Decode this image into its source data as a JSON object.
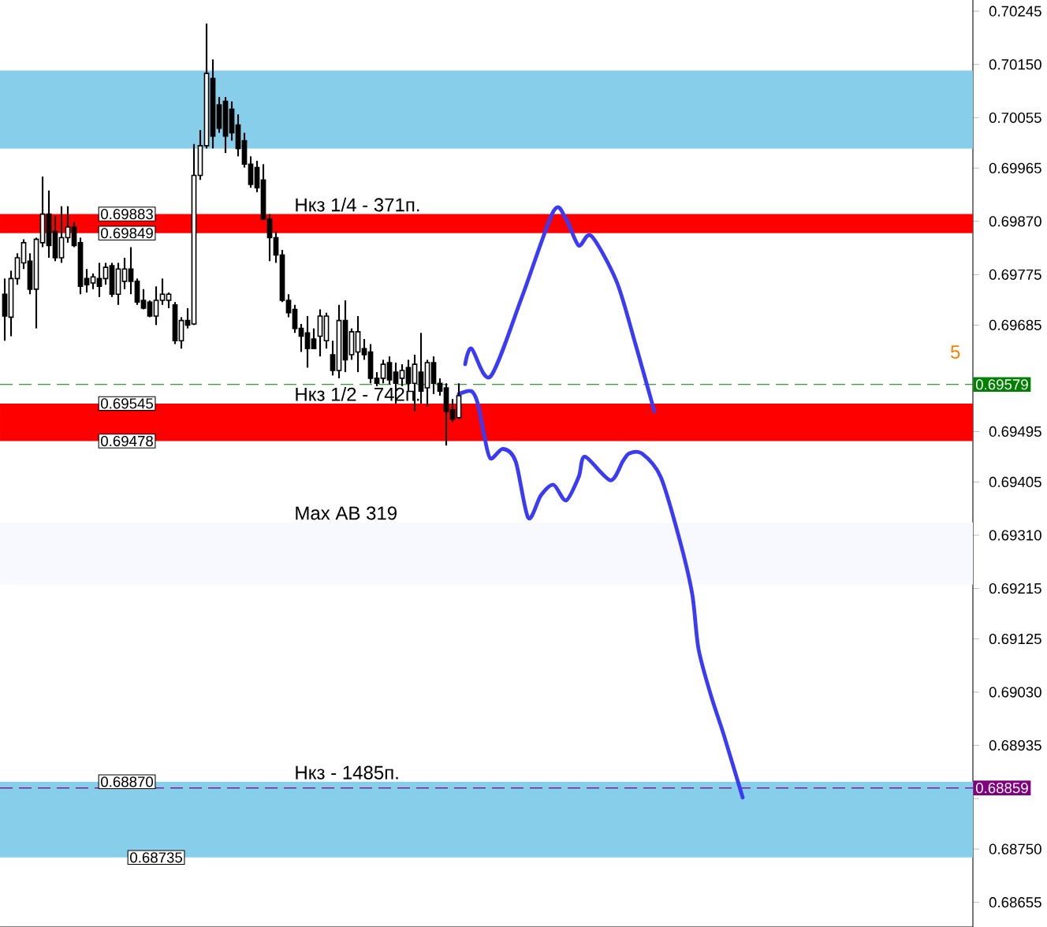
{
  "chart_data": {
    "type": "candlestick",
    "categories": [
      null,
      null,
      null,
      null,
      null,
      null,
      null,
      null,
      null,
      null,
      null,
      null,
      null,
      null,
      null,
      null,
      null,
      null,
      null,
      null,
      null,
      null,
      null,
      null,
      null,
      null,
      null,
      null,
      null,
      null,
      null,
      null,
      null,
      null,
      null,
      null,
      null,
      null,
      null,
      null,
      null,
      null,
      null,
      null,
      null,
      null,
      null,
      null,
      null,
      null,
      null,
      null,
      null,
      null,
      null,
      null,
      null,
      null,
      null,
      null,
      null,
      null,
      null,
      null,
      null,
      null,
      null,
      null,
      null,
      null,
      null,
      null,
      null,
      null,
      null,
      null,
      null,
      null,
      null,
      null,
      null,
      null,
      null,
      null,
      null,
      null,
      null,
      null,
      null,
      null,
      null,
      null,
      null,
      null,
      null,
      null,
      null,
      null,
      null,
      null,
      null,
      null,
      null,
      null,
      null,
      null,
      null,
      null,
      null,
      null,
      null,
      null,
      null,
      null,
      null,
      null,
      null,
      null,
      null,
      null,
      null,
      null,
      null,
      null,
      null,
      null,
      null,
      null,
      null,
      null,
      null,
      null,
      null,
      null,
      null,
      null,
      null,
      null,
      null,
      null,
      null,
      null,
      null,
      null,
      null,
      null,
      null,
      null,
      null,
      null,
      null,
      null,
      null,
      null
    ],
    "ohlc": [
      [
        0.6974,
        0.69768,
        0.69657,
        0.69701
      ],
      [
        0.69699,
        0.69782,
        0.69665,
        0.69768
      ],
      [
        0.69768,
        0.69813,
        0.69757,
        0.69805
      ],
      [
        0.69796,
        0.69838,
        0.69785,
        0.69832
      ],
      [
        0.69799,
        0.69813,
        0.6974,
        0.69749
      ],
      [
        0.69749,
        0.69841,
        0.69679,
        0.69838
      ],
      [
        0.69832,
        0.6995,
        0.69824,
        0.69883
      ],
      [
        0.69883,
        0.69925,
        0.69805,
        0.69827
      ],
      [
        0.69852,
        0.6988,
        0.69799,
        0.69805
      ],
      [
        0.69805,
        0.69897,
        0.69796,
        0.69841
      ],
      [
        0.69841,
        0.69897,
        0.69832,
        0.6986
      ],
      [
        0.6986,
        0.69869,
        0.69824,
        0.69827
      ],
      [
        0.69832,
        0.69841,
        0.6974,
        0.69754
      ],
      [
        0.69768,
        0.69785,
        0.69743,
        0.69757
      ],
      [
        0.6976,
        0.69777,
        0.69749,
        0.69771
      ],
      [
        0.69768,
        0.69796,
        0.69735,
        0.69754
      ],
      [
        0.69768,
        0.69796,
        0.69757,
        0.69788
      ],
      [
        0.69791,
        0.69796,
        0.69735,
        0.6974
      ],
      [
        0.6974,
        0.69796,
        0.69721,
        0.69785
      ],
      [
        0.69763,
        0.69805,
        0.69749,
        0.69785
      ],
      [
        0.69785,
        0.69824,
        0.6974,
        0.69763
      ],
      [
        0.69763,
        0.69768,
        0.69721,
        0.69726
      ],
      [
        0.69729,
        0.69749,
        0.69713,
        0.69715
      ],
      [
        0.69726,
        0.69729,
        0.69699,
        0.69701
      ],
      [
        0.69701,
        0.69754,
        0.69685,
        0.69729
      ],
      [
        0.69729,
        0.69768,
        0.69721,
        0.6974
      ],
      [
        0.69729,
        0.69743,
        0.69715,
        0.6974
      ],
      [
        0.69721,
        0.69726,
        0.69651,
        0.69657
      ],
      [
        0.69657,
        0.69699,
        0.69643,
        0.69693
      ],
      [
        0.69693,
        0.69715,
        0.69679,
        0.69685
      ],
      [
        0.69687,
        0.70008,
        0.69685,
        0.69952
      ],
      [
        0.69952,
        0.70033,
        0.69944,
        0.70005
      ],
      [
        0.70005,
        0.70223,
        0.7,
        0.70134
      ],
      [
        0.70125,
        0.70159,
        0.7,
        0.70022
      ],
      [
        0.70078,
        0.70092,
        0.70028,
        0.70036
      ],
      [
        0.70084,
        0.70092,
        0.69992,
        0.70022
      ],
      [
        0.7007,
        0.70084,
        0.70014,
        0.70028
      ],
      [
        0.70042,
        0.70061,
        0.69986,
        0.7
      ],
      [
        0.70014,
        0.70028,
        0.69966,
        0.69972
      ],
      [
        0.69972,
        0.69986,
        0.6993,
        0.69936
      ],
      [
        0.69966,
        0.69978,
        0.69922,
        0.6993
      ],
      [
        0.69944,
        0.69972,
        0.69872,
        0.69874
      ],
      [
        0.69874,
        0.69883,
        0.69799,
        0.69841
      ],
      [
        0.69841,
        0.69852,
        0.69796,
        0.6981
      ],
      [
        0.6981,
        0.69819,
        0.69726,
        0.69729
      ],
      [
        0.69729,
        0.6974,
        0.69699,
        0.69707
      ],
      [
        0.69713,
        0.69721,
        0.69671,
        0.69679
      ],
      [
        0.69679,
        0.69687,
        0.69637,
        0.69665
      ],
      [
        0.69671,
        0.69701,
        0.69609,
        0.69643
      ],
      [
        0.6966,
        0.69679,
        0.69643,
        0.69643
      ],
      [
        0.69665,
        0.69713,
        0.69629,
        0.69701
      ],
      [
        0.69657,
        0.69707,
        0.69643,
        0.69701
      ],
      [
        0.69632,
        0.69657,
        0.69595,
        0.69604
      ],
      [
        0.69604,
        0.69721,
        0.6959,
        0.69693
      ],
      [
        0.69693,
        0.69729,
        0.69601,
        0.69623
      ],
      [
        0.69632,
        0.69679,
        0.69623,
        0.69673
      ],
      [
        0.69637,
        0.69701,
        0.69601,
        0.69673
      ],
      [
        0.69643,
        0.6966,
        0.69623,
        0.69632
      ],
      [
        0.69637,
        0.69651,
        0.69581,
        0.6959
      ],
      [
        0.6959,
        0.69601,
        0.69576,
        0.69581
      ],
      [
        0.6959,
        0.69623,
        0.69581,
        0.69615
      ],
      [
        0.69618,
        0.69629,
        0.69579,
        0.69587
      ],
      [
        0.69601,
        0.69618,
        0.69545,
        0.69581
      ],
      [
        0.6959,
        0.69615,
        0.69576,
        0.69604
      ],
      [
        0.69609,
        0.69623,
        0.69567,
        0.69581
      ],
      [
        0.69581,
        0.69632,
        0.69531,
        0.69615
      ],
      [
        0.69601,
        0.69671,
        0.69545,
        0.69567
      ],
      [
        0.69573,
        0.69623,
        0.6954,
        0.69618
      ],
      [
        0.69618,
        0.69629,
        0.69562,
        0.69581
      ],
      [
        0.69581,
        0.6959,
        0.69559,
        0.69567
      ],
      [
        0.69573,
        0.69581,
        0.6947,
        0.69531
      ],
      [
        0.69534,
        0.69553,
        0.69512,
        0.69517
      ],
      [
        0.6952,
        0.69581,
        0.69517,
        0.69559
      ],
      null,
      null,
      null,
      null,
      null,
      null,
      null,
      null,
      null,
      null,
      null,
      null,
      null,
      null,
      null,
      null,
      null,
      null,
      null,
      null,
      null,
      null,
      null,
      null,
      null,
      null,
      null,
      null,
      null,
      null,
      null,
      null,
      null,
      null,
      null,
      null,
      null,
      null,
      null,
      null,
      null,
      null,
      null,
      null,
      null,
      null,
      null,
      null,
      null,
      null,
      null,
      null,
      null,
      null,
      null,
      null,
      null,
      null,
      null,
      null,
      null,
      null,
      null,
      null,
      null,
      null,
      null,
      null,
      null,
      null,
      null,
      null,
      null,
      null,
      null,
      null,
      null,
      null,
      null,
      null,
      null
    ],
    "series": [
      {
        "type": "line",
        "color": "#3b3bf5",
        "values": [
          null,
          null,
          null,
          null,
          null,
          null,
          null,
          null,
          null,
          null,
          null,
          null,
          null,
          null,
          null,
          null,
          null,
          null,
          null,
          null,
          null,
          null,
          null,
          null,
          null,
          null,
          null,
          null,
          null,
          null,
          null,
          null,
          null,
          null,
          null,
          null,
          null,
          null,
          null,
          null,
          null,
          null,
          null,
          null,
          null,
          null,
          null,
          null,
          null,
          null,
          null,
          null,
          null,
          null,
          null,
          null,
          null,
          null,
          null,
          null,
          null,
          null,
          null,
          null,
          null,
          null,
          null,
          null,
          null,
          null,
          null,
          null,
          null,
          0.69615,
          0.69643,
          null,
          null,
          0.69593,
          null,
          null,
          null,
          null,
          0.69735,
          null,
          null,
          null,
          null,
          0.69888,
          null,
          0.69874,
          null,
          0.69827,
          null,
          0.69844,
          null,
          null,
          null,
          0.69763,
          null,
          null,
          0.69651,
          null,
          null,
          0.69531,
          null,
          null,
          null,
          null,
          null,
          null,
          null,
          null,
          null,
          null,
          null,
          null,
          null,
          null,
          null,
          null,
          null,
          null,
          null,
          null,
          null,
          null,
          null,
          null,
          null,
          null,
          null,
          null,
          null,
          null,
          null,
          null,
          null,
          null,
          null,
          null,
          null,
          null,
          null,
          null,
          null,
          null,
          null,
          null,
          null,
          null,
          null,
          null,
          null,
          null
        ]
      },
      {
        "type": "line",
        "color": "#3b3bf5",
        "values": [
          null,
          null,
          null,
          null,
          null,
          null,
          null,
          null,
          null,
          null,
          null,
          null,
          null,
          null,
          null,
          null,
          null,
          null,
          null,
          null,
          null,
          null,
          null,
          null,
          null,
          null,
          null,
          null,
          null,
          null,
          null,
          null,
          null,
          null,
          null,
          null,
          null,
          null,
          null,
          null,
          null,
          null,
          null,
          null,
          null,
          null,
          null,
          null,
          null,
          null,
          null,
          null,
          null,
          null,
          null,
          null,
          null,
          null,
          null,
          null,
          null,
          null,
          null,
          null,
          null,
          null,
          null,
          null,
          null,
          null,
          null,
          null,
          0.69562,
          null,
          0.69567,
          0.69545,
          0.69489,
          0.69447,
          null,
          0.69464,
          null,
          0.69442,
          null,
          0.69341,
          null,
          0.69381,
          null,
          0.694,
          null,
          0.69372,
          null,
          0.69414,
          0.6945,
          null,
          null,
          null,
          0.69408,
          null,
          0.69442,
          0.69456,
          null,
          0.69456,
          null,
          null,
          0.69414,
          null,
          null,
          0.69302,
          null,
          0.69205,
          0.69107,
          null,
          0.69023,
          null,
          0.68954,
          null,
          null,
          0.68842,
          null,
          null,
          null,
          null,
          null,
          null,
          null,
          null,
          null,
          null,
          null,
          null,
          null,
          null,
          null,
          null,
          null,
          null,
          null,
          null,
          null,
          null,
          null,
          null,
          null,
          null,
          null,
          null,
          null,
          null,
          null,
          null,
          null,
          null,
          null,
          null
        ]
      }
    ],
    "ylim": [
      0.68611,
      0.70265
    ],
    "yticks": [
      {
        "value": 0.70245,
        "label": "0.70245"
      },
      {
        "value": 0.7015,
        "label": "0.70150"
      },
      {
        "value": 0.70055,
        "label": "0.70055"
      },
      {
        "value": 0.69965,
        "label": "0.69965"
      },
      {
        "value": 0.6987,
        "label": "0.69870"
      },
      {
        "value": 0.69775,
        "label": "0.69775"
      },
      {
        "value": 0.69685,
        "label": "0.69685"
      },
      {
        "value": 0.6959,
        "label": null
      },
      {
        "value": 0.69495,
        "label": "0.69495"
      },
      {
        "value": 0.69405,
        "label": "0.69405"
      },
      {
        "value": 0.6931,
        "label": "0.69310"
      },
      {
        "value": 0.69215,
        "label": "0.69215"
      },
      {
        "value": 0.69125,
        "label": "0.69125"
      },
      {
        "value": 0.6903,
        "label": "0.69030"
      },
      {
        "value": 0.68935,
        "label": "0.68935"
      },
      {
        "value": 0.6884,
        "label": null
      },
      {
        "value": 0.6875,
        "label": "0.68750"
      },
      {
        "value": 0.68655,
        "label": "0.68655"
      }
    ],
    "tick_labels": "y",
    "bands": [
      {
        "axis": "y",
        "from": 0.7,
        "to": 0.70139,
        "color": "#87ceeb"
      },
      {
        "axis": "y",
        "from": 0.69849,
        "to": 0.69883,
        "color": "#ff0000",
        "label": "Нкз 1/4 - 371п."
      },
      {
        "axis": "y",
        "from": 0.69478,
        "to": 0.69545,
        "color": "#ff0000",
        "label": "Нкз 1/2 - 742п."
      },
      {
        "axis": "y",
        "from": 0.69222,
        "to": 0.69333,
        "color": "#f8f8ff",
        "label": "Max AB 319"
      },
      {
        "axis": "y",
        "from": 0.68735,
        "to": 0.6887,
        "color": "#87ceeb",
        "label": "Нкз - 1485п."
      }
    ],
    "ref_lines": [
      {
        "axis": "y",
        "value": 0.69579,
        "label": "0.69579",
        "color": "#008000",
        "line_style": "dashed"
      },
      {
        "axis": "y",
        "value": 0.68859,
        "label": "0.68859",
        "color": "#800080",
        "line_style": "dashed"
      }
    ],
    "annotations": [
      {
        "text": "0.69883",
        "y": 0.69883
      },
      {
        "text": "0.69849",
        "y": 0.69849
      },
      {
        "text": "0.69545",
        "y": 0.69545
      },
      {
        "text": "0.69478",
        "y": 0.69478
      },
      {
        "text": "0.68870",
        "y": 0.6887
      },
      {
        "text": "0.68735",
        "y": 0.68735
      },
      "5"
    ],
    "marker": "none"
  }
}
